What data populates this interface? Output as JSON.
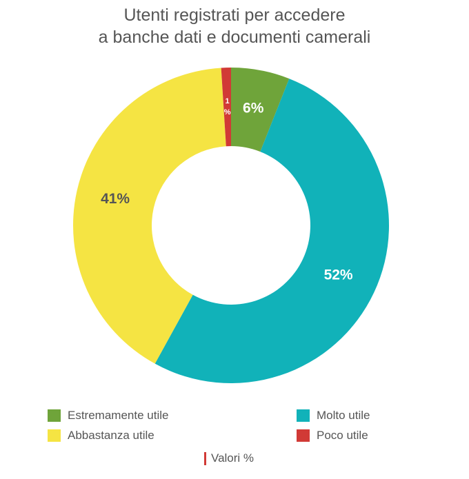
{
  "title": {
    "line1": "Utenti registrati per accedere",
    "line2": "a banche dati e documenti camerali"
  },
  "chart_data": {
    "type": "pie",
    "variant": "donut",
    "title": "Utenti registrati per accedere a banche dati e documenti camerali",
    "unit": "%",
    "start": "top, clockwise",
    "legend_position": "bottom",
    "slices": [
      {
        "name": "Estremamente utile",
        "value": 6,
        "label": "6%",
        "color": "#6fa43a",
        "label_color": "#ffffff"
      },
      {
        "name": "Molto utile",
        "value": 52,
        "label": "52%",
        "color": "#11b2b9",
        "label_color": "#ffffff"
      },
      {
        "name": "Abbastanza utile",
        "value": 41,
        "label": "41%",
        "color": "#f5e443",
        "label_color": "#555555"
      },
      {
        "name": "Poco utile",
        "value": 1,
        "label": "1%",
        "color": "#d13a36",
        "label_color": "#ffffff"
      }
    ]
  },
  "legend": {
    "items": [
      {
        "label": "Estremamente utile",
        "color": "#6fa43a"
      },
      {
        "label": "Abbastanza utile",
        "color": "#f5e443"
      },
      {
        "label": "Molto utile",
        "color": "#11b2b9"
      },
      {
        "label": "Poco utile",
        "color": "#d13a36"
      }
    ]
  },
  "footnote": {
    "text": "Valori %",
    "color": "#d13a36"
  }
}
